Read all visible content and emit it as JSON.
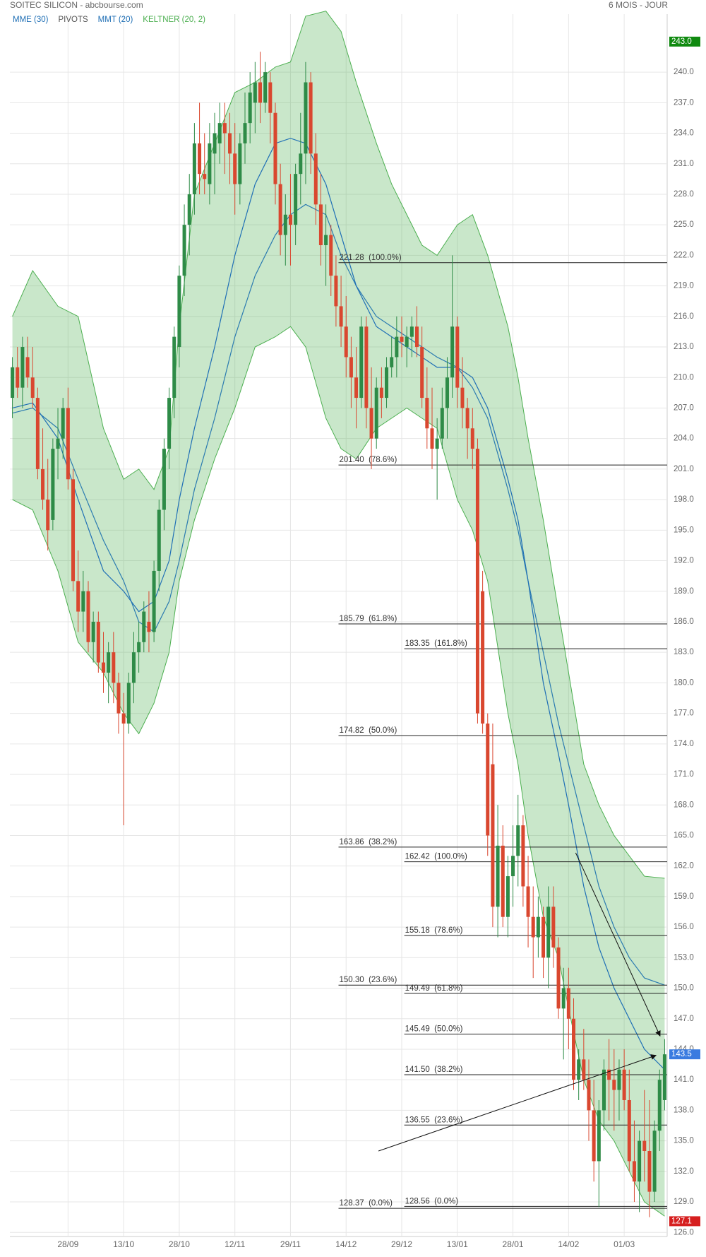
{
  "header": {
    "title": "SOITEC SILICON - abcbourse.com",
    "period": "6 MOIS - JOUR"
  },
  "chart_data": {
    "type": "candlestick",
    "categories": [
      null,
      null,
      null,
      null,
      null,
      null,
      null,
      null,
      null,
      null,
      null,
      "28/09",
      null,
      null,
      null,
      null,
      null,
      null,
      null,
      null,
      null,
      null,
      "13/10",
      null,
      null,
      null,
      null,
      null,
      null,
      null,
      null,
      null,
      null,
      "28/10",
      null,
      null,
      null,
      null,
      null,
      null,
      null,
      null,
      null,
      null,
      "12/11",
      null,
      null,
      null,
      null,
      null,
      null,
      null,
      null,
      null,
      null,
      "29/11",
      null,
      null,
      null,
      null,
      null,
      null,
      null,
      null,
      null,
      null,
      "14/12",
      null,
      null,
      null,
      null,
      null,
      null,
      null,
      null,
      null,
      null,
      "29/12",
      null,
      null,
      null,
      null,
      null,
      null,
      null,
      null,
      null,
      null,
      "13/01",
      null,
      null,
      null,
      null,
      null,
      null,
      null,
      null,
      null,
      null,
      "28/01",
      null,
      null,
      null,
      null,
      null,
      null,
      null,
      null,
      null,
      null,
      "14/02",
      null,
      null,
      null,
      null,
      null,
      null,
      null,
      null,
      null,
      null,
      "01/03",
      null,
      null,
      null,
      null,
      null,
      null,
      null,
      null
    ],
    "candles": [
      [
        208,
        212,
        206,
        211
      ],
      [
        211,
        213,
        208,
        209
      ],
      [
        209,
        214,
        207,
        213
      ],
      [
        212,
        214,
        209,
        210
      ],
      [
        210,
        213,
        207,
        208
      ],
      [
        208,
        209,
        200,
        201
      ],
      [
        201,
        205,
        197,
        198
      ],
      [
        198,
        202,
        193,
        195
      ],
      [
        196,
        204,
        195,
        203
      ],
      [
        203,
        207,
        200,
        204
      ],
      [
        204,
        208,
        202,
        207
      ],
      [
        207,
        209,
        199,
        200
      ],
      [
        200,
        201,
        189,
        190
      ],
      [
        190,
        193,
        185,
        187
      ],
      [
        187,
        191,
        185,
        189
      ],
      [
        189,
        190,
        183,
        184
      ],
      [
        184,
        187,
        182,
        186
      ],
      [
        186,
        187,
        181,
        182
      ],
      [
        182,
        185,
        179,
        181
      ],
      [
        181,
        184,
        178,
        183
      ],
      [
        183,
        185,
        178,
        180
      ],
      [
        180,
        181,
        175,
        177
      ],
      [
        177,
        179,
        166,
        176
      ],
      [
        176,
        181,
        175,
        180
      ],
      [
        180,
        185,
        178,
        183
      ],
      [
        183,
        186,
        181,
        184
      ],
      [
        184,
        188,
        183,
        187
      ],
      [
        186,
        189,
        183,
        185
      ],
      [
        185,
        192,
        184,
        191
      ],
      [
        191,
        198,
        189,
        197
      ],
      [
        197,
        204,
        195,
        203
      ],
      [
        203,
        209,
        201,
        208
      ],
      [
        208,
        215,
        206,
        214
      ],
      [
        213,
        221,
        211,
        220
      ],
      [
        220,
        227,
        218,
        225
      ],
      [
        225,
        230,
        222,
        228
      ],
      [
        228,
        235,
        226,
        233
      ],
      [
        233,
        237,
        228,
        230
      ],
      [
        230,
        234,
        228,
        229.5
      ],
      [
        229,
        235,
        227,
        233
      ],
      [
        232,
        236,
        228,
        234
      ],
      [
        233,
        237,
        231,
        235
      ],
      [
        235,
        237,
        230,
        234
      ],
      [
        234,
        236,
        229,
        232
      ],
      [
        232,
        235,
        226,
        229
      ],
      [
        229,
        234,
        227,
        233
      ],
      [
        233,
        238,
        231,
        235
      ],
      [
        235,
        240,
        233,
        238
      ],
      [
        237,
        241,
        234,
        239
      ],
      [
        239,
        242,
        235,
        237
      ],
      [
        237,
        241,
        236,
        240
      ],
      [
        239,
        240,
        233,
        236
      ],
      [
        236,
        237,
        227,
        229
      ],
      [
        229,
        231,
        222,
        224
      ],
      [
        224,
        228,
        221,
        226
      ],
      [
        226,
        230,
        221,
        225
      ],
      [
        225,
        231,
        223,
        230
      ],
      [
        230,
        236,
        227,
        232
      ],
      [
        232,
        241,
        229,
        239
      ],
      [
        239,
        240,
        230,
        232
      ],
      [
        232,
        234,
        225,
        227
      ],
      [
        227,
        230,
        221,
        223
      ],
      [
        223,
        227,
        219,
        224
      ],
      [
        224,
        225,
        218,
        220
      ],
      [
        220,
        222,
        215,
        217
      ],
      [
        217,
        220,
        213,
        215
      ],
      [
        215,
        218,
        210,
        212
      ],
      [
        212,
        214,
        207,
        210
      ],
      [
        210,
        213,
        205,
        208
      ],
      [
        208,
        216,
        207,
        215
      ],
      [
        215,
        216,
        205,
        207
      ],
      [
        207,
        211,
        201,
        204
      ],
      [
        204,
        210,
        203,
        209
      ],
      [
        209,
        211,
        206,
        208
      ],
      [
        208,
        212,
        207,
        211
      ],
      [
        211,
        214,
        210,
        212
      ],
      [
        212,
        216,
        210,
        214
      ],
      [
        214,
        216,
        212,
        213.5
      ],
      [
        213,
        215,
        211,
        214
      ],
      [
        214,
        216,
        212,
        215
      ],
      [
        215,
        217,
        212,
        213
      ],
      [
        213,
        215,
        207,
        208
      ],
      [
        208,
        211,
        203,
        205
      ],
      [
        205,
        209,
        201,
        203
      ],
      [
        203,
        206,
        198,
        204
      ],
      [
        204,
        209,
        203,
        207
      ],
      [
        207,
        212,
        204,
        210
      ],
      [
        210,
        222,
        208,
        215
      ],
      [
        215,
        216,
        207,
        209
      ],
      [
        209,
        212,
        205,
        207
      ],
      [
        207,
        208,
        202,
        205
      ],
      [
        205,
        207,
        201,
        203
      ],
      [
        203,
        204,
        176,
        177
      ],
      [
        189,
        191,
        175,
        176
      ],
      [
        176,
        177,
        163,
        165
      ],
      [
        172,
        176,
        156,
        158
      ],
      [
        158,
        168,
        155,
        164
      ],
      [
        164,
        166,
        156,
        157
      ],
      [
        157,
        163,
        155,
        161
      ],
      [
        161,
        166,
        158,
        163
      ],
      [
        163,
        169,
        160,
        166
      ],
      [
        166,
        167,
        158,
        160
      ],
      [
        160,
        163,
        154,
        157
      ],
      [
        157,
        160,
        151,
        155
      ],
      [
        155,
        159,
        153,
        157
      ],
      [
        157,
        158,
        151,
        153
      ],
      [
        153,
        160,
        150,
        158
      ],
      [
        158,
        160,
        152,
        154
      ],
      [
        154,
        155,
        147,
        148
      ],
      [
        148,
        152,
        143,
        150
      ],
      [
        150,
        152,
        144,
        147
      ],
      [
        147,
        149,
        140,
        141
      ],
      [
        141,
        144,
        139,
        143
      ],
      [
        143,
        146,
        140,
        141
      ],
      [
        141,
        143,
        135,
        138
      ],
      [
        138,
        141,
        131,
        133
      ],
      [
        133,
        139,
        128.5,
        138
      ],
      [
        138,
        143,
        136,
        142
      ],
      [
        142,
        145,
        137,
        141
      ],
      [
        141,
        144,
        136,
        140
      ],
      [
        140,
        143,
        137,
        142
      ],
      [
        142,
        144,
        138,
        139
      ],
      [
        139,
        142,
        132,
        133
      ],
      [
        133,
        137,
        129,
        131
      ],
      [
        131,
        136,
        128,
        135
      ],
      [
        135,
        140,
        131,
        134
      ],
      [
        134,
        139,
        127.5,
        130
      ],
      [
        130,
        137,
        129,
        136
      ],
      [
        136,
        142,
        134,
        141
      ],
      [
        139,
        145,
        138,
        143.5
      ]
    ],
    "up_color": "#2e8b47",
    "down_color": "#d9472f",
    "ylim": [
      125.6,
      245.7
    ],
    "yticks": [
      {
        "value": 126,
        "label": "126.0"
      },
      {
        "value": 129,
        "label": "129.0"
      },
      {
        "value": 132,
        "label": "132.0"
      },
      {
        "value": 135,
        "label": "135.0"
      },
      {
        "value": 138,
        "label": "138.0"
      },
      {
        "value": 141,
        "label": "141.0"
      },
      {
        "value": 144,
        "label": "144.0"
      },
      {
        "value": 147,
        "label": "147.0"
      },
      {
        "value": 150,
        "label": "150.0"
      },
      {
        "value": 153,
        "label": "153.0"
      },
      {
        "value": 156,
        "label": "156.0"
      },
      {
        "value": 159,
        "label": "159.0"
      },
      {
        "value": 162,
        "label": "162.0"
      },
      {
        "value": 165,
        "label": "165.0"
      },
      {
        "value": 168,
        "label": "168.0"
      },
      {
        "value": 171,
        "label": "171.0"
      },
      {
        "value": 174,
        "label": "174.0"
      },
      {
        "value": 177,
        "label": "177.0"
      },
      {
        "value": 180,
        "label": "180.0"
      },
      {
        "value": 183,
        "label": "183.0"
      },
      {
        "value": 186,
        "label": "186.0"
      },
      {
        "value": 189,
        "label": "189.0"
      },
      {
        "value": 192,
        "label": "192.0"
      },
      {
        "value": 195,
        "label": "195.0"
      },
      {
        "value": 198,
        "label": "198.0"
      },
      {
        "value": 201,
        "label": "201.0"
      },
      {
        "value": 204,
        "label": "204.0"
      },
      {
        "value": 207,
        "label": "207.0"
      },
      {
        "value": 210,
        "label": "210.0"
      },
      {
        "value": 213,
        "label": "213.0"
      },
      {
        "value": 216,
        "label": "216.0"
      },
      {
        "value": 219,
        "label": "219.0"
      },
      {
        "value": 222,
        "label": "222.0"
      },
      {
        "value": 225,
        "label": "225.0"
      },
      {
        "value": 228,
        "label": "228.0"
      },
      {
        "value": 231,
        "label": "231.0"
      },
      {
        "value": 234,
        "label": "234.0"
      },
      {
        "value": 237,
        "label": "237.0"
      },
      {
        "value": 240,
        "label": "240.0"
      }
    ],
    "grid": true,
    "legend": [
      {
        "name": "MME (30)",
        "color": "#1f6fb5"
      },
      {
        "name": "PIVOTS",
        "color": "#555555"
      },
      {
        "name": "MMT (20)",
        "color": "#1f6fb5"
      },
      {
        "name": "KELTNER (20, 2)",
        "color": "#4caf50"
      }
    ],
    "keltner": {
      "color": "#4caf50",
      "x": [
        0,
        4,
        9,
        13,
        18,
        22,
        25,
        28,
        31,
        33,
        36,
        40,
        44,
        48,
        52,
        55,
        58,
        62,
        65,
        68,
        72,
        75,
        78,
        81,
        84,
        88,
        91,
        94,
        98,
        100,
        102,
        105,
        108,
        110,
        113,
        116,
        119,
        122,
        125,
        129
      ],
      "upper": [
        216,
        220.5,
        217,
        216,
        205,
        200,
        201,
        199,
        203,
        215,
        228,
        233,
        238,
        239,
        240.5,
        241,
        245.5,
        246,
        244,
        239,
        233,
        229,
        226,
        223,
        222,
        225,
        226,
        222,
        215,
        210,
        204,
        196,
        187,
        181,
        172,
        168,
        165,
        163,
        161,
        160.8
      ],
      "lower": [
        198,
        197,
        191,
        184,
        181,
        177,
        175,
        178,
        183,
        190,
        196,
        202,
        207,
        213,
        214,
        215,
        213,
        206,
        203,
        202,
        205,
        206,
        207,
        206,
        205,
        198,
        195,
        190,
        177,
        172,
        165,
        157,
        153,
        148,
        141,
        137,
        135,
        132,
        129,
        127.6
      ]
    },
    "lines": [
      {
        "color": "#2b7bb0",
        "x": [
          0,
          4,
          9,
          13,
          18,
          22,
          25,
          28,
          31,
          33,
          36,
          40,
          44,
          48,
          52,
          55,
          58,
          62,
          65,
          68,
          72,
          75,
          78,
          81,
          84,
          88,
          91,
          94,
          98,
          100,
          102,
          105,
          108,
          110,
          113,
          116,
          119,
          122,
          125,
          129
        ],
        "values": [
          206.5,
          207,
          205,
          200,
          194,
          190,
          186,
          185,
          188,
          192,
          199,
          206,
          214,
          220,
          224,
          226,
          227,
          226,
          222,
          219,
          216,
          215,
          214,
          213,
          212,
          211,
          209,
          206,
          199,
          195,
          190,
          183,
          176,
          172,
          166,
          160,
          156,
          153,
          151,
          150.3
        ]
      },
      {
        "color": "#1f6fb5",
        "x": [
          0,
          4,
          9,
          13,
          18,
          22,
          25,
          28,
          31,
          33,
          36,
          40,
          44,
          48,
          52,
          55,
          58,
          62,
          65,
          68,
          72,
          75,
          78,
          81,
          84,
          88,
          91,
          94,
          98,
          100,
          102,
          105,
          108,
          110,
          113,
          116,
          119,
          122,
          125,
          129
        ],
        "values": [
          207,
          207.5,
          204,
          198,
          191,
          189,
          187,
          188,
          192,
          198,
          205,
          213,
          222,
          229,
          233,
          233.5,
          233,
          229,
          224,
          219,
          215,
          214,
          213,
          212,
          211,
          211,
          210,
          207,
          200,
          196,
          190,
          180,
          173,
          168,
          160,
          154,
          150,
          147,
          144,
          142
        ]
      }
    ],
    "fibonacci": [
      {
        "x_start": 64.5,
        "levels": [
          {
            "value": 221.28,
            "label": "221.28  (100.0%)"
          },
          {
            "value": 201.4,
            "label": "201.40  (78.6%)"
          },
          {
            "value": 185.79,
            "label": "185.79  (61.8%)"
          },
          {
            "value": 174.82,
            "label": "174.82  (50.0%)"
          },
          {
            "value": 163.86,
            "label": "163.86  (38.2%)"
          },
          {
            "value": 150.3,
            "label": "150.30  (23.6%)"
          },
          {
            "value": 128.37,
            "label": "128.37  (0.0%)"
          }
        ]
      },
      {
        "x_start": 77.5,
        "levels": [
          {
            "value": 183.35,
            "label": "183.35  (161.8%)"
          },
          {
            "value": 162.42,
            "label": "162.42  (100.0%)"
          },
          {
            "value": 155.18,
            "label": "155.18  (78.6%)"
          },
          {
            "value": 149.49,
            "label": "149.49  (61.8%)"
          },
          {
            "value": 145.49,
            "label": "145.49  (50.0%)"
          },
          {
            "value": 141.5,
            "label": "141.50  (38.2%)"
          },
          {
            "value": 136.55,
            "label": "136.55  (23.6%)"
          },
          {
            "value": 128.56,
            "label": "128.56  (0.0%)"
          }
        ]
      }
    ],
    "trendlines": [
      {
        "x": [
          72.4,
          127.3
        ],
        "values": [
          134.0,
          143.4
        ]
      },
      {
        "x": [
          111.4,
          128.1
        ],
        "values": [
          163.3,
          145.3
        ]
      }
    ],
    "price_markers": [
      {
        "value": 243.0,
        "label": "243.0",
        "color": "#108a10"
      },
      {
        "value": 143.5,
        "label": "143.5",
        "color": "#3a7be0"
      },
      {
        "value": 127.1,
        "label": "127.1",
        "color": "#d61f1f"
      }
    ]
  }
}
